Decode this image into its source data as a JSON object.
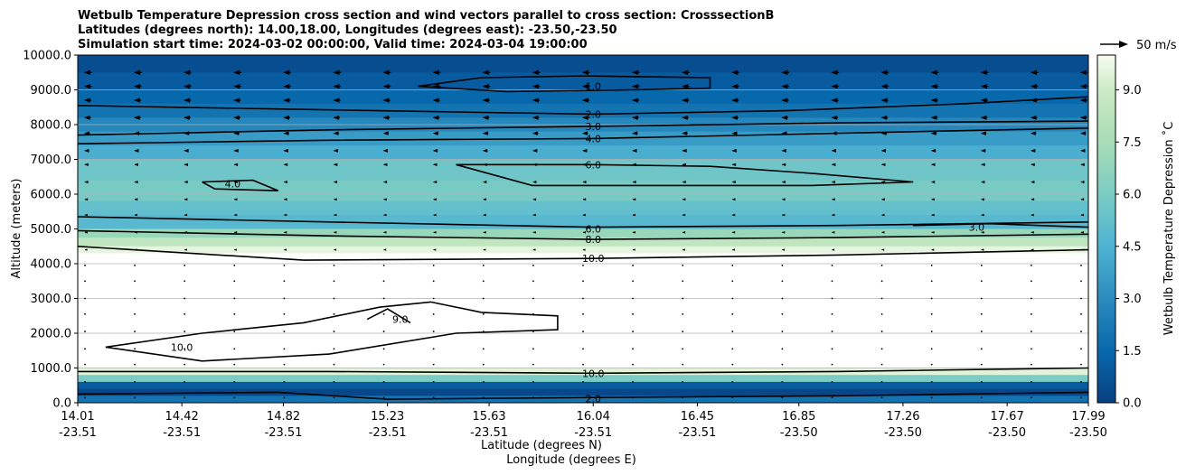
{
  "title_lines": [
    "Wetbulb Temperature Depression cross section and wind vectors parallel to cross section: CrosssectionB",
    "Latitudes (degrees north): 14.00,18.00, Longitudes (degrees east): -23.50,-23.50",
    "Simulation start time: 2024-03-02 00:00:00, Valid time: 2024-03-04 19:00:00"
  ],
  "chart_data": {
    "type": "heatmap",
    "title": "Wetbulb Temperature Depression cross section and wind vectors parallel to cross section: CrosssectionB",
    "ylabel": "Altitude (meters)",
    "xlabel": "Latitude (degrees N)",
    "xlabel2": "Longitude (degrees E)",
    "ylim": [
      0,
      10000
    ],
    "yticks": [
      "0.0",
      "1000.0",
      "2000.0",
      "3000.0",
      "4000.0",
      "5000.0",
      "6000.0",
      "7000.0",
      "8000.0",
      "9000.0",
      "10000.0"
    ],
    "xlim": [
      14.01,
      17.99
    ],
    "xticks": [
      {
        "lat": "14.01",
        "lon": "-23.51",
        "x": 14.01
      },
      {
        "lat": "14.42",
        "lon": "-23.51",
        "x": 14.42
      },
      {
        "lat": "14.82",
        "lon": "-23.51",
        "x": 14.82
      },
      {
        "lat": "15.23",
        "lon": "-23.51",
        "x": 15.23
      },
      {
        "lat": "15.63",
        "lon": "-23.51",
        "x": 15.63
      },
      {
        "lat": "16.04",
        "lon": "-23.51",
        "x": 16.04
      },
      {
        "lat": "16.45",
        "lon": "-23.51",
        "x": 16.45
      },
      {
        "lat": "16.85",
        "lon": "-23.50",
        "x": 16.85
      },
      {
        "lat": "17.26",
        "lon": "-23.50",
        "x": 17.26
      },
      {
        "lat": "17.67",
        "lon": "-23.50",
        "x": 17.67
      },
      {
        "lat": "17.99",
        "lon": "-23.50",
        "x": 17.99
      }
    ],
    "grid": "horizontal",
    "colorbar": {
      "label": "Wetbulb Temperature Depression $^\\circ$C",
      "label_display": "Wetbulb Temperature Depression ˚C",
      "min": 0.0,
      "max": 10.0,
      "ticks": [
        "0.0",
        "1.5",
        "3.0",
        "4.5",
        "6.0",
        "7.5",
        "9.0"
      ],
      "levels": 20,
      "colormap": "GnBu_r"
    },
    "quiver_key": {
      "label": "50 m/s",
      "value": 50
    },
    "layers": [
      {
        "z0": 9500,
        "z1": 10000,
        "value": 0.5
      },
      {
        "z0": 9000,
        "z1": 9500,
        "value": 1.0
      },
      {
        "z0": 8600,
        "z1": 9000,
        "value": 1.5
      },
      {
        "z0": 8200,
        "z1": 8600,
        "value": 2.0
      },
      {
        "z0": 7800,
        "z1": 8200,
        "value": 2.8
      },
      {
        "z0": 7400,
        "z1": 7800,
        "value": 3.6
      },
      {
        "z0": 7000,
        "z1": 7400,
        "value": 4.3
      },
      {
        "z0": 6400,
        "z1": 7000,
        "value": 5.6
      },
      {
        "z0": 5800,
        "z1": 6400,
        "value": 5.9
      },
      {
        "z0": 5400,
        "z1": 5800,
        "value": 5.2
      },
      {
        "z0": 5000,
        "z1": 5400,
        "value": 4.8
      },
      {
        "z0": 4750,
        "z1": 5000,
        "value": 7.0
      },
      {
        "z0": 4500,
        "z1": 4750,
        "value": 8.5
      },
      {
        "z0": 4300,
        "z1": 4500,
        "value": 9.6
      },
      {
        "z0": 1000,
        "z1": 4300,
        "value": 11.0
      },
      {
        "z0": 800,
        "z1": 1000,
        "value": 9.5
      },
      {
        "z0": 600,
        "z1": 800,
        "value": 6.0
      },
      {
        "z0": 400,
        "z1": 600,
        "value": 1.0
      },
      {
        "z0": 200,
        "z1": 400,
        "value": 0.3
      },
      {
        "z0": 0,
        "z1": 200,
        "value": 2.0
      }
    ],
    "contours": [
      {
        "level": "1.0",
        "points": [
          [
            15.35,
            9100
          ],
          [
            15.6,
            9350
          ],
          [
            16.0,
            9400
          ],
          [
            16.5,
            9350
          ],
          [
            16.5,
            9050
          ],
          [
            16.2,
            9000
          ],
          [
            15.7,
            8950
          ],
          [
            15.35,
            9100
          ]
        ],
        "label_at": [
          16.04,
          9100
        ]
      },
      {
        "level": "2.0",
        "points": [
          [
            14.01,
            8550
          ],
          [
            14.8,
            8450
          ],
          [
            15.6,
            8350
          ],
          [
            16.04,
            8300
          ],
          [
            16.8,
            8400
          ],
          [
            17.5,
            8600
          ],
          [
            17.99,
            8800
          ]
        ],
        "label_at": [
          16.04,
          8300
        ]
      },
      {
        "level": "3.0",
        "points": [
          [
            14.01,
            7700
          ],
          [
            15.0,
            7850
          ],
          [
            16.04,
            7950
          ],
          [
            17.0,
            8050
          ],
          [
            17.99,
            8100
          ]
        ],
        "label_at": [
          16.04,
          7950
        ]
      },
      {
        "level": "4.0",
        "points": [
          [
            14.01,
            7450
          ],
          [
            15.0,
            7550
          ],
          [
            16.04,
            7600
          ],
          [
            17.0,
            7750
          ],
          [
            17.99,
            7900
          ]
        ],
        "label_at": [
          16.04,
          7600
        ]
      },
      {
        "level": "6.0",
        "points": [
          [
            15.5,
            6850
          ],
          [
            16.04,
            6850
          ],
          [
            16.5,
            6800
          ],
          [
            16.9,
            6600
          ],
          [
            17.3,
            6350
          ],
          [
            16.9,
            6250
          ],
          [
            16.04,
            6250
          ],
          [
            15.8,
            6250
          ],
          [
            15.5,
            6850
          ]
        ],
        "label_at": [
          16.04,
          6850
        ]
      },
      {
        "level": "4.0",
        "points": [
          [
            14.5,
            6350
          ],
          [
            14.7,
            6400
          ],
          [
            14.8,
            6100
          ],
          [
            14.55,
            6150
          ],
          [
            14.5,
            6350
          ]
        ],
        "label_at": [
          14.62,
          6300
        ]
      },
      {
        "level": "3.0",
        "points": [
          [
            17.3,
            5100
          ],
          [
            17.6,
            5150
          ],
          [
            17.99,
            5050
          ]
        ],
        "label_at": [
          17.55,
          5050
        ]
      },
      {
        "level": "6.0",
        "points": [
          [
            14.01,
            5350
          ],
          [
            15.0,
            5200
          ],
          [
            16.04,
            5050
          ],
          [
            17.0,
            5100
          ],
          [
            17.99,
            5200
          ]
        ],
        "label_at": [
          16.04,
          5000
        ]
      },
      {
        "level": "8.0",
        "points": [
          [
            14.01,
            4950
          ],
          [
            15.0,
            4800
          ],
          [
            16.04,
            4700
          ],
          [
            17.0,
            4750
          ],
          [
            17.99,
            4850
          ]
        ],
        "label_at": [
          16.04,
          4700
        ]
      },
      {
        "level": "10.0",
        "points": [
          [
            14.01,
            4500
          ],
          [
            14.9,
            4100
          ],
          [
            16.04,
            4150
          ],
          [
            17.0,
            4250
          ],
          [
            17.99,
            4400
          ]
        ],
        "label_at": [
          16.04,
          4150
        ]
      },
      {
        "level": "10.0",
        "points": [
          [
            14.12,
            1600
          ],
          [
            14.5,
            2000
          ],
          [
            14.9,
            2300
          ],
          [
            15.2,
            2750
          ],
          [
            15.4,
            2900
          ],
          [
            15.6,
            2600
          ],
          [
            15.9,
            2500
          ],
          [
            15.9,
            2100
          ],
          [
            15.5,
            2000
          ],
          [
            15.0,
            1400
          ],
          [
            14.5,
            1200
          ],
          [
            14.12,
            1600
          ]
        ],
        "label_at": [
          14.42,
          1600
        ]
      },
      {
        "level": "9.0",
        "points": [
          [
            15.15,
            2400
          ],
          [
            15.23,
            2700
          ],
          [
            15.32,
            2300
          ]
        ],
        "label_at": [
          15.28,
          2400
        ]
      },
      {
        "level": "10.0",
        "points": [
          [
            14.01,
            900
          ],
          [
            15.0,
            900
          ],
          [
            16.04,
            850
          ],
          [
            17.0,
            900
          ],
          [
            17.99,
            1000
          ]
        ],
        "label_at": [
          16.04,
          850
        ]
      },
      {
        "level": "2.0",
        "points": [
          [
            14.01,
            250
          ],
          [
            14.8,
            300
          ],
          [
            15.23,
            100
          ],
          [
            16.04,
            150
          ],
          [
            17.0,
            200
          ],
          [
            17.99,
            300
          ]
        ],
        "label_at": [
          16.04,
          120
        ]
      }
    ],
    "wind_rows": [
      9500,
      9100,
      8700,
      8200,
      7750,
      7250,
      6850,
      6350,
      5850,
      5400,
      4900,
      4400,
      3950,
      3500,
      3000,
      2550,
      2050,
      1550,
      1100,
      600,
      150
    ],
    "wind_speeds": [
      14,
      14,
      13,
      12,
      10,
      8,
      6,
      5,
      4,
      3,
      3,
      2,
      1,
      1,
      1,
      1,
      1,
      1,
      1,
      1,
      1
    ],
    "wind_columns": 21
  }
}
